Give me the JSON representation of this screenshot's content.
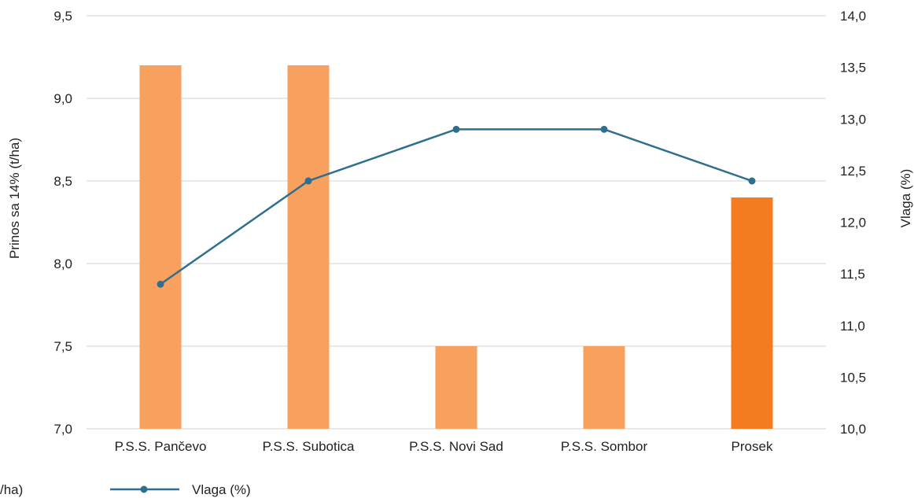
{
  "chart_data": {
    "type": "bar",
    "categories": [
      "P.S.S. Pančevo",
      "P.S.S. Subotica",
      "P.S.S. Novi Sad",
      "P.S.S. Sombor",
      "Prosek"
    ],
    "series": [
      {
        "name": "",
        "axis": "left",
        "values": [
          9.2,
          9.2,
          7.5,
          7.5,
          8.4
        ],
        "colors": [
          "#f8a05e",
          "#f8a05e",
          "#f8a05e",
          "#f8a05e",
          "#f47b20"
        ]
      },
      {
        "name": "Vlaga (%)",
        "type": "line",
        "axis": "right",
        "values": [
          11.4,
          12.4,
          12.9,
          12.9,
          12.4
        ],
        "color": "#2e6e8e"
      }
    ],
    "ylabel": "Prinos sa 14% (t/ha)",
    "y2label": "Vlaga (%)",
    "ylim": [
      7.0,
      9.5
    ],
    "y2lim": [
      10.0,
      14.0
    ],
    "yticks": [
      "7,0",
      "7,5",
      "8,0",
      "8,5",
      "9,0",
      "9,5"
    ],
    "y2ticks": [
      "10,0",
      "10,5",
      "11,0",
      "11,5",
      "12,0",
      "12,5",
      "13,0",
      "13,5",
      "14,0"
    ],
    "legend": {
      "placement": "bottom-left",
      "items": [
        "/ha)",
        "Vlaga (%)"
      ]
    },
    "grid": true
  }
}
